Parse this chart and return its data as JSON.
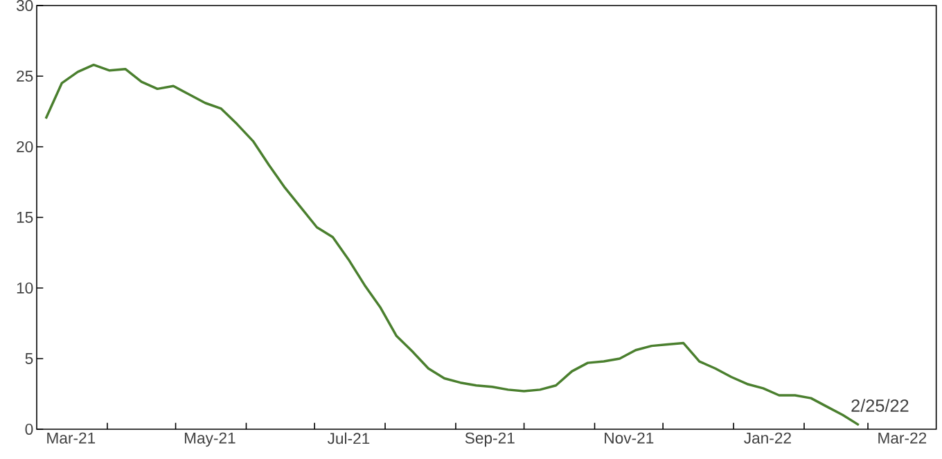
{
  "chart_data": {
    "type": "line",
    "x": [
      "2021-03-05",
      "2021-03-12",
      "2021-03-19",
      "2021-03-26",
      "2021-04-02",
      "2021-04-09",
      "2021-04-16",
      "2021-04-23",
      "2021-04-30",
      "2021-05-07",
      "2021-05-14",
      "2021-05-21",
      "2021-05-28",
      "2021-06-04",
      "2021-06-11",
      "2021-06-18",
      "2021-06-25",
      "2021-07-02",
      "2021-07-09",
      "2021-07-16",
      "2021-07-23",
      "2021-07-30",
      "2021-08-06",
      "2021-08-13",
      "2021-08-20",
      "2021-08-27",
      "2021-09-03",
      "2021-09-10",
      "2021-09-17",
      "2021-09-24",
      "2021-10-01",
      "2021-10-08",
      "2021-10-15",
      "2021-10-22",
      "2021-10-29",
      "2021-11-05",
      "2021-11-12",
      "2021-11-19",
      "2021-11-26",
      "2021-12-03",
      "2021-12-10",
      "2021-12-17",
      "2021-12-24",
      "2021-12-31",
      "2022-01-07",
      "2022-01-14",
      "2022-01-21",
      "2022-01-28",
      "2022-02-04",
      "2022-02-11",
      "2022-02-18",
      "2022-02-25"
    ],
    "series": [
      {
        "color": "#4a7f2e",
        "values": [
          22.0,
          24.5,
          25.3,
          25.8,
          25.4,
          25.5,
          24.6,
          24.1,
          24.3,
          23.7,
          23.1,
          22.7,
          21.6,
          20.4,
          18.7,
          17.1,
          15.7,
          14.3,
          13.6,
          12.0,
          10.2,
          8.6,
          6.6,
          5.5,
          4.3,
          3.6,
          3.3,
          3.1,
          3.0,
          2.8,
          2.7,
          2.8,
          3.1,
          4.1,
          4.7,
          4.8,
          5.0,
          5.6,
          5.9,
          6.0,
          6.1,
          4.8,
          4.3,
          3.7,
          3.2,
          2.9,
          2.4,
          2.4,
          2.2,
          1.6,
          1.0,
          0.3
        ]
      }
    ],
    "marker": "none",
    "line_style": "solid",
    "xlim": [
      "2021-03-01",
      "2022-03-31"
    ],
    "xticks": [
      {
        "value": "2021-04-01",
        "label": null
      },
      {
        "value": "2021-05-01",
        "label": null
      },
      {
        "value": "2021-06-01",
        "label": null
      },
      {
        "value": "2021-07-01",
        "label": null
      },
      {
        "value": "2021-08-01",
        "label": null
      },
      {
        "value": "2021-09-01",
        "label": null
      },
      {
        "value": "2021-10-01",
        "label": null
      },
      {
        "value": "2021-11-01",
        "label": null
      },
      {
        "value": "2021-12-01",
        "label": null
      },
      {
        "value": "2022-01-01",
        "label": null
      },
      {
        "value": "2022-02-01",
        "label": null
      },
      {
        "value": "2022-03-01",
        "label": null
      },
      {
        "value": "2021-03-16",
        "label": "Mar-21"
      },
      {
        "value": "2021-05-16",
        "label": "May-21"
      },
      {
        "value": "2021-07-16",
        "label": "Jul-21"
      },
      {
        "value": "2021-09-16",
        "label": "Sep-21"
      },
      {
        "value": "2021-11-16",
        "label": "Nov-21"
      },
      {
        "value": "2022-01-16",
        "label": "Jan-22"
      },
      {
        "value": "2022-03-16",
        "label": "Mar-22"
      }
    ],
    "ylim": [
      0,
      30
    ],
    "yticks": [
      0,
      5,
      10,
      15,
      20,
      25,
      30
    ],
    "annotations": [
      {
        "text": "2/25/22",
        "x": "2022-02-25",
        "y": 0.3
      }
    ]
  }
}
